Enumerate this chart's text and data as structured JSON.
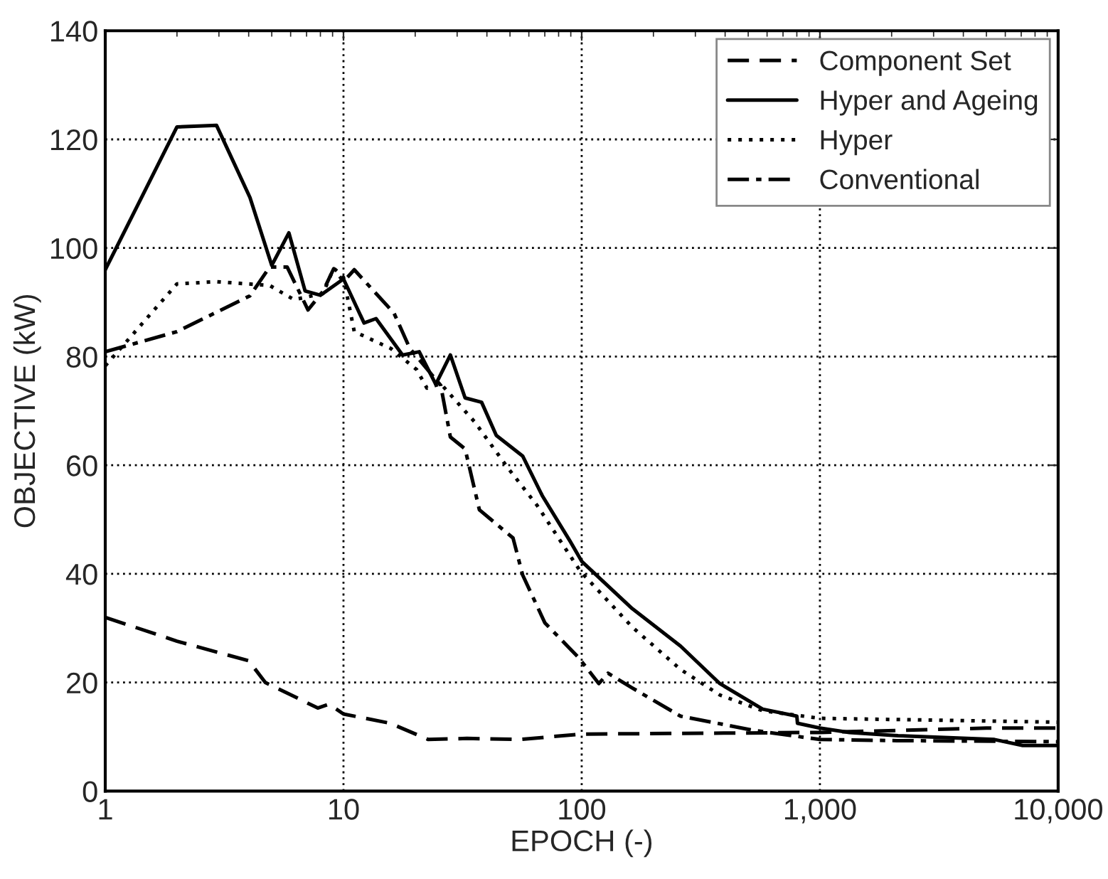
{
  "chart_data": {
    "type": "line",
    "xlabel": "EPOCH (-)",
    "ylabel": "OBJECTIVE (kW)",
    "log": "x",
    "grid": true,
    "legend": "top right",
    "marker": "none",
    "xlim": [
      1,
      10000
    ],
    "xticks": [
      1,
      10,
      100,
      {
        "value": 1000,
        "label": "1,000"
      },
      {
        "value": 10000,
        "label": "10,000"
      }
    ],
    "ylim": [
      0,
      140
    ],
    "yticks": [
      0,
      20,
      40,
      60,
      80,
      100,
      120,
      140
    ],
    "series": [
      {
        "name": "Component Set",
        "color": "#000000",
        "line_style": "dashed",
        "x": [
          1,
          2,
          4,
          4.7,
          7.8,
          8.7,
          10,
          15.7,
          22.7,
          33,
          55,
          100,
          1000,
          5000,
          10000
        ],
        "values": [
          32,
          27.6,
          24,
          20,
          15.3,
          16,
          14.2,
          12.5,
          9.5,
          9.7,
          9.5,
          10.5,
          10.8,
          11.6,
          11.6
        ]
      },
      {
        "name": "Hyper and Ageing",
        "color": "#000000",
        "line_style": "solid",
        "x": [
          1,
          2,
          2.93,
          4.05,
          5,
          5.9,
          6.9,
          8,
          10,
          12.2,
          13.7,
          17.7,
          20.8,
          24.4,
          28.1,
          32.4,
          38,
          43.8,
          56.5,
          68.3,
          90,
          100,
          163,
          260,
          380,
          575,
          800,
          805,
          1000,
          1330,
          2130,
          5400,
          7100,
          10000
        ],
        "values": [
          96,
          122.3,
          122.6,
          109.3,
          96.8,
          102.8,
          92.1,
          91.3,
          94.3,
          86.2,
          87,
          80.3,
          80.9,
          74.9,
          80.3,
          72.4,
          71.6,
          65.5,
          61.7,
          54.4,
          45.8,
          42.3,
          33.6,
          26.7,
          19.8,
          15.1,
          13.8,
          12.5,
          11.6,
          10.8,
          10.2,
          9.5,
          8.4,
          8.4
        ]
      },
      {
        "name": "Hyper",
        "color": "#000000",
        "line_style": "dotted",
        "x": [
          1,
          2,
          2.93,
          4.9,
          6.2,
          8.2,
          9.1,
          10,
          11.1,
          15.8,
          20.3,
          22.4,
          25.6,
          35.5,
          49,
          65,
          98.6,
          163,
          260,
          380,
          575,
          1000,
          10000
        ],
        "values": [
          78.3,
          93.4,
          93.8,
          93.1,
          90.5,
          91.6,
          96.3,
          94.6,
          84.6,
          81.5,
          77.6,
          74.2,
          75,
          68,
          59.5,
          52.6,
          40.5,
          30.2,
          22.4,
          17.7,
          14.8,
          13.4,
          12.7
        ]
      },
      {
        "name": "Conventional",
        "color": "#000000",
        "line_style": "dashdot",
        "x": [
          1,
          2,
          4.05,
          4.9,
          5.8,
          7.1,
          8.2,
          9.1,
          10,
          11.1,
          16.3,
          19,
          25.6,
          28.1,
          32.4,
          37.2,
          51.5,
          56.5,
          70,
          97,
          118,
          129,
          163,
          260,
          525,
          1000,
          2100,
          10000
        ],
        "values": [
          80.9,
          84.6,
          91.2,
          96.5,
          96.5,
          88.6,
          92,
          96.2,
          93.8,
          96,
          88,
          81.5,
          74.7,
          65.2,
          63,
          51.8,
          46.6,
          39.8,
          31,
          24.6,
          19.8,
          21.7,
          19,
          13.8,
          11.2,
          9.5,
          9.3,
          9.1
        ]
      }
    ]
  }
}
